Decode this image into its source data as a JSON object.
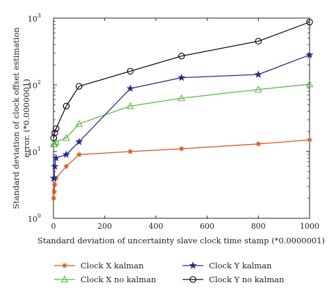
{
  "chart_data": {
    "type": "line",
    "xlabel": "Standard deviation of uncertainty slave clock time stamp (*0.0000001)",
    "ylabel_line1": "Standard deviation of clock offset estimation",
    "ylabel_line2": "error. (*0.0000001)",
    "xlim": [
      0,
      1000
    ],
    "ylim": [
      1,
      1000
    ],
    "yscale": "log",
    "grid": false,
    "legend_placement": "bottom",
    "x_ticks": [
      0,
      200,
      400,
      600,
      800,
      1000
    ],
    "y_ticks": [
      {
        "value": 1,
        "base": "10",
        "exp": "0"
      },
      {
        "value": 10,
        "base": "10",
        "exp": "1"
      },
      {
        "value": 100,
        "base": "10",
        "exp": "2"
      },
      {
        "value": 1000,
        "base": "10",
        "exp": "3"
      }
    ],
    "series": [
      {
        "name": "Clock X kalman",
        "color": "#d9541a",
        "marker": "asterisk",
        "x": [
          1,
          3,
          5,
          10,
          50,
          100,
          300,
          500,
          800,
          1000
        ],
        "y": [
          2.0,
          2.5,
          3.2,
          4.0,
          6.0,
          9.0,
          10.0,
          11.0,
          13.0,
          15.0
        ]
      },
      {
        "name": "Clock X no kalman",
        "color": "#5ab84a",
        "marker": "triangle",
        "x": [
          1,
          3,
          5,
          10,
          50,
          100,
          300,
          500,
          800,
          1000
        ],
        "y": [
          13.0,
          13.0,
          13.0,
          14.0,
          16.0,
          26.0,
          48.0,
          63.0,
          85.0,
          102.0
        ]
      },
      {
        "name": "Clock Y kalman",
        "color": "#2a2a8c",
        "marker": "star",
        "x": [
          1,
          3,
          5,
          10,
          50,
          100,
          300,
          500,
          800,
          1000
        ],
        "y": [
          4.0,
          4.0,
          6.0,
          8.0,
          9.0,
          14.0,
          88.0,
          128.0,
          143.0,
          280.0
        ]
      },
      {
        "name": "Clock Y no kalman",
        "color": "#111111",
        "marker": "circle",
        "x": [
          1,
          5,
          10,
          50,
          100,
          300,
          500,
          800,
          1000
        ],
        "y": [
          16.0,
          19.0,
          22.0,
          48.0,
          95.0,
          160.0,
          270.0,
          450.0,
          870.0
        ]
      }
    ]
  }
}
